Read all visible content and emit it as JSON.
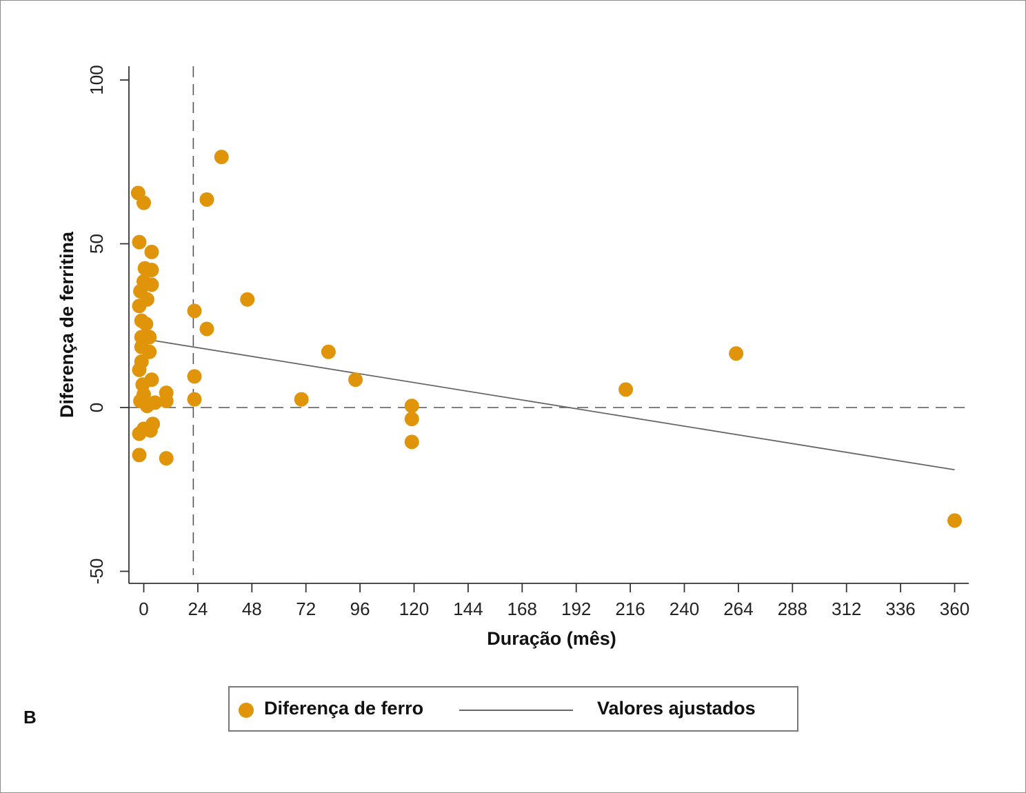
{
  "panel_label": "B",
  "colors": {
    "points": "#E0940A",
    "fit_line": "#666666",
    "axis": "#333333",
    "reference_lines": "#555555"
  },
  "chart_data": {
    "type": "scatter",
    "xlabel": "Duração (mês)",
    "ylabel": "Diferença de ferritina",
    "xlim": [
      -6,
      366
    ],
    "ylim": [
      -54,
      106
    ],
    "xticks": [
      0,
      24,
      48,
      72,
      96,
      120,
      144,
      168,
      192,
      216,
      240,
      264,
      288,
      312,
      336,
      360
    ],
    "yticks": [
      -50,
      0,
      50,
      100
    ],
    "grid": false,
    "legend_position": "bottom",
    "reference_lines": [
      {
        "orientation": "vertical",
        "value": 22,
        "style": "dashed"
      },
      {
        "orientation": "horizontal",
        "value": 0,
        "style": "dashed"
      }
    ],
    "series": [
      {
        "name": "Diferença de ferro",
        "kind": "points",
        "points": [
          [
            -2.5,
            65.5
          ],
          [
            0,
            62.5
          ],
          [
            -2,
            50.5
          ],
          [
            3.5,
            47.5
          ],
          [
            0.5,
            42.5
          ],
          [
            3.5,
            42
          ],
          [
            0,
            38.5
          ],
          [
            3.5,
            37.5
          ],
          [
            -1.5,
            35.5
          ],
          [
            1.5,
            33
          ],
          [
            -2,
            31
          ],
          [
            -1,
            26.5
          ],
          [
            1,
            25.5
          ],
          [
            -1,
            21.5
          ],
          [
            2.5,
            21.5
          ],
          [
            -1,
            18.5
          ],
          [
            2.5,
            17
          ],
          [
            -1,
            14
          ],
          [
            -2,
            11.5
          ],
          [
            3.5,
            8.5
          ],
          [
            -0.5,
            7
          ],
          [
            0,
            4
          ],
          [
            10,
            4.5
          ],
          [
            -1.5,
            2
          ],
          [
            5,
            1.5
          ],
          [
            10,
            2
          ],
          [
            1.5,
            0.5
          ],
          [
            0,
            -6.5
          ],
          [
            4,
            -5
          ],
          [
            3,
            -7
          ],
          [
            -2,
            -8
          ],
          [
            -2,
            -14.5
          ],
          [
            10,
            -15.5
          ],
          [
            22.5,
            29.5
          ],
          [
            22.5,
            9.5
          ],
          [
            22.5,
            2.5
          ],
          [
            28,
            63.5
          ],
          [
            28,
            24
          ],
          [
            34.5,
            76.5
          ],
          [
            46,
            33
          ],
          [
            70,
            2.5
          ],
          [
            82,
            17
          ],
          [
            94,
            8.5
          ],
          [
            119,
            0.5
          ],
          [
            119,
            -3.5
          ],
          [
            119,
            -10.5
          ],
          [
            214,
            5.5
          ],
          [
            263,
            16.5
          ],
          [
            360,
            -34.5
          ]
        ]
      },
      {
        "name": "Valores ajustados",
        "kind": "line",
        "x": [
          3,
          360
        ],
        "y": [
          20.6,
          -19
        ]
      }
    ]
  }
}
